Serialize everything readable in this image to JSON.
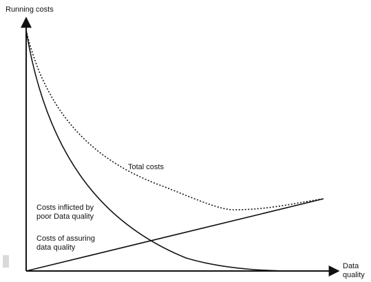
{
  "diagram": {
    "y_axis_label": "Running costs",
    "x_axis_label_line1": "Data",
    "x_axis_label_line2": "quality",
    "curves": [
      {
        "id": "total",
        "label": "Total costs",
        "line_style": "dotted"
      },
      {
        "id": "poor",
        "label_line1": "Costs inflicted by",
        "label_line2": "poor Data quality",
        "line_style": "solid"
      },
      {
        "id": "assuring",
        "label_line1": "Costs of assuring",
        "label_line2": "data quality",
        "line_style": "solid"
      }
    ],
    "colors": {
      "line": "#111111",
      "background": "#ffffff"
    }
  }
}
